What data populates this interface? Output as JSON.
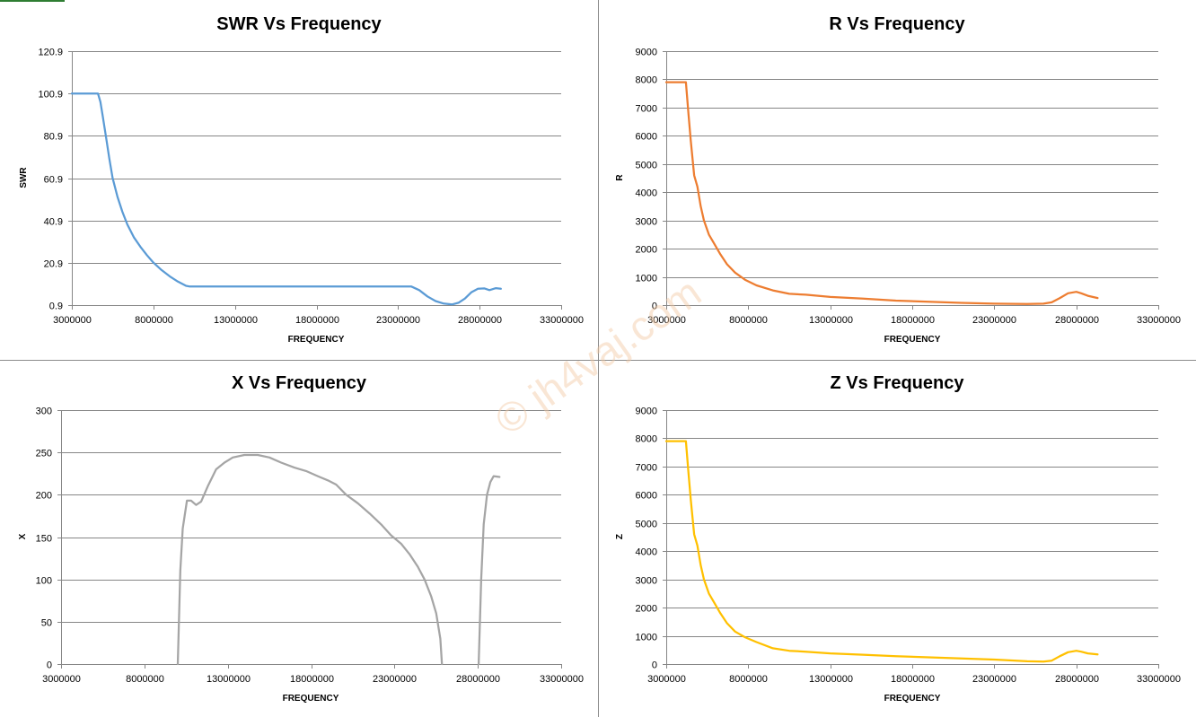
{
  "watermark": "© jh4vaj.com",
  "chart_data": [
    {
      "type": "line",
      "title": "SWR Vs Frequency",
      "xlabel": "FREQUENCY",
      "ylabel": "SWR",
      "color": "#5b9bd5",
      "xlim": [
        3000000,
        33000000
      ],
      "ylim": [
        0.9,
        120.9
      ],
      "xticks": [
        3000000,
        8000000,
        13000000,
        18000000,
        23000000,
        28000000,
        33000000
      ],
      "yticks": [
        0.9,
        20.9,
        40.9,
        60.9,
        80.9,
        100.9,
        120.9
      ],
      "xtick_labels": [
        "3000000",
        "8000000",
        "13000000",
        "18000000",
        "23000000",
        "28000000",
        "33000000"
      ],
      "ytick_labels": [
        "0.9",
        "20.9",
        "40.9",
        "60.9",
        "80.9",
        "100.9",
        "120.9"
      ],
      "grid": true,
      "series": [
        {
          "x": [
            3000000,
            4000000,
            4600000,
            4750000,
            4900000,
            5100000,
            5300000,
            5500000,
            5800000,
            6100000,
            6400000,
            6800000,
            7200000,
            7600000,
            8000000,
            8500000,
            9000000,
            9500000,
            10000000,
            10200000,
            12000000,
            15000000,
            18000000,
            21000000,
            23800000,
            24300000,
            24800000,
            25300000,
            25800000,
            26300000,
            26700000,
            27100000,
            27500000,
            27900000,
            28300000,
            28600000,
            29000000,
            29300000
          ],
          "y": [
            100.9,
            100.9,
            100.9,
            97.0,
            90.0,
            80.0,
            70.0,
            61.0,
            52.0,
            45.0,
            39.0,
            33.0,
            28.5,
            24.5,
            21.0,
            17.5,
            14.5,
            12.0,
            10.0,
            9.7,
            9.7,
            9.7,
            9.7,
            9.7,
            9.7,
            8.0,
            5.0,
            2.8,
            1.6,
            1.2,
            2.0,
            4.0,
            7.0,
            8.6,
            8.8,
            8.0,
            8.9,
            8.6
          ]
        }
      ]
    },
    {
      "type": "line",
      "title": "R Vs Frequency",
      "xlabel": "FREQUENCY",
      "ylabel": "R",
      "color": "#ed7d31",
      "xlim": [
        3000000,
        33000000
      ],
      "ylim": [
        0,
        9000
      ],
      "xticks": [
        3000000,
        8000000,
        13000000,
        18000000,
        23000000,
        28000000,
        33000000
      ],
      "yticks": [
        0,
        1000,
        2000,
        3000,
        4000,
        5000,
        6000,
        7000,
        8000,
        9000
      ],
      "xtick_labels": [
        "3000000",
        "8000000",
        "13000000",
        "18000000",
        "23000000",
        "28000000",
        "33000000"
      ],
      "ytick_labels": [
        "0",
        "1000",
        "2000",
        "3000",
        "4000",
        "5000",
        "6000",
        "7000",
        "8000",
        "9000"
      ],
      "grid": true,
      "series": [
        {
          "x": [
            3000000,
            4200000,
            4350000,
            4500000,
            4700000,
            4900000,
            5100000,
            5300000,
            5600000,
            5900000,
            6300000,
            6700000,
            7200000,
            7800000,
            8500000,
            9500000,
            10500000,
            11500000,
            13000000,
            15000000,
            17000000,
            19000000,
            21000000,
            23000000,
            25000000,
            26000000,
            26500000,
            27000000,
            27500000,
            28000000,
            28300000,
            28700000,
            29300000
          ],
          "y": [
            7900,
            7900,
            6800,
            5800,
            4600,
            4200,
            3500,
            3000,
            2500,
            2200,
            1800,
            1450,
            1150,
            900,
            700,
            520,
            400,
            370,
            290,
            230,
            160,
            120,
            80,
            50,
            40,
            50,
            100,
            250,
            420,
            470,
            420,
            330,
            250
          ]
        }
      ]
    },
    {
      "type": "line",
      "title": "X Vs Frequency",
      "xlabel": "FREQUENCY",
      "ylabel": "X",
      "color": "#a5a5a5",
      "xlim": [
        3000000,
        33000000
      ],
      "ylim": [
        0,
        300
      ],
      "xticks": [
        3000000,
        8000000,
        13000000,
        18000000,
        23000000,
        28000000,
        33000000
      ],
      "yticks": [
        0,
        50,
        100,
        150,
        200,
        250,
        300
      ],
      "xtick_labels": [
        "3000000",
        "8000000",
        "13000000",
        "18000000",
        "23000000",
        "28000000",
        "33000000"
      ],
      "ytick_labels": [
        "0",
        "50",
        "100",
        "150",
        "200",
        "250",
        "300"
      ],
      "grid": true,
      "series": [
        {
          "x": [
            10000000,
            10150000,
            10300000,
            10550000,
            10800000,
            11100000,
            11400000,
            11800000,
            12300000,
            12800000,
            13300000,
            14000000,
            14800000,
            15500000,
            16200000,
            17000000,
            17700000,
            18400000,
            19000000,
            19500000,
            20100000,
            20800000,
            21500000,
            22200000,
            22800000,
            23400000,
            23900000,
            24400000,
            24800000,
            25200000,
            25500000,
            25750000,
            25850000
          ],
          "y": [
            0,
            110,
            160,
            193,
            193,
            188,
            192,
            210,
            230,
            238,
            244,
            247,
            247,
            244,
            238,
            232,
            228,
            222,
            217,
            212,
            200,
            190,
            178,
            165,
            152,
            142,
            130,
            115,
            100,
            80,
            60,
            30,
            0
          ]
        },
        {
          "x": [
            28050000,
            28200000,
            28350000,
            28550000,
            28750000,
            28950000,
            29300000
          ],
          "y": [
            0,
            100,
            165,
            200,
            215,
            222,
            221
          ]
        }
      ]
    },
    {
      "type": "line",
      "title": "Z Vs Frequency",
      "xlabel": "FREQUENCY",
      "ylabel": "Z",
      "color": "#ffc000",
      "xlim": [
        3000000,
        33000000
      ],
      "ylim": [
        0,
        9000
      ],
      "xticks": [
        3000000,
        8000000,
        13000000,
        18000000,
        23000000,
        28000000,
        33000000
      ],
      "yticks": [
        0,
        1000,
        2000,
        3000,
        4000,
        5000,
        6000,
        7000,
        8000,
        9000
      ],
      "xtick_labels": [
        "3000000",
        "8000000",
        "13000000",
        "18000000",
        "23000000",
        "28000000",
        "33000000"
      ],
      "ytick_labels": [
        "0",
        "1000",
        "2000",
        "3000",
        "4000",
        "5000",
        "6000",
        "7000",
        "8000",
        "9000"
      ],
      "grid": true,
      "series": [
        {
          "x": [
            3000000,
            4200000,
            4350000,
            4500000,
            4700000,
            4900000,
            5100000,
            5300000,
            5600000,
            5900000,
            6300000,
            6700000,
            7200000,
            7800000,
            8500000,
            9500000,
            10500000,
            11500000,
            13000000,
            15000000,
            17000000,
            19000000,
            21000000,
            23000000,
            25000000,
            26000000,
            26500000,
            27000000,
            27500000,
            28000000,
            28300000,
            28700000,
            29300000
          ],
          "y": [
            7900,
            7900,
            6800,
            5800,
            4600,
            4200,
            3500,
            3000,
            2500,
            2200,
            1800,
            1450,
            1150,
            950,
            780,
            560,
            470,
            440,
            380,
            330,
            280,
            240,
            200,
            160,
            100,
            90,
            120,
            280,
            420,
            470,
            440,
            380,
            340
          ]
        }
      ]
    }
  ]
}
